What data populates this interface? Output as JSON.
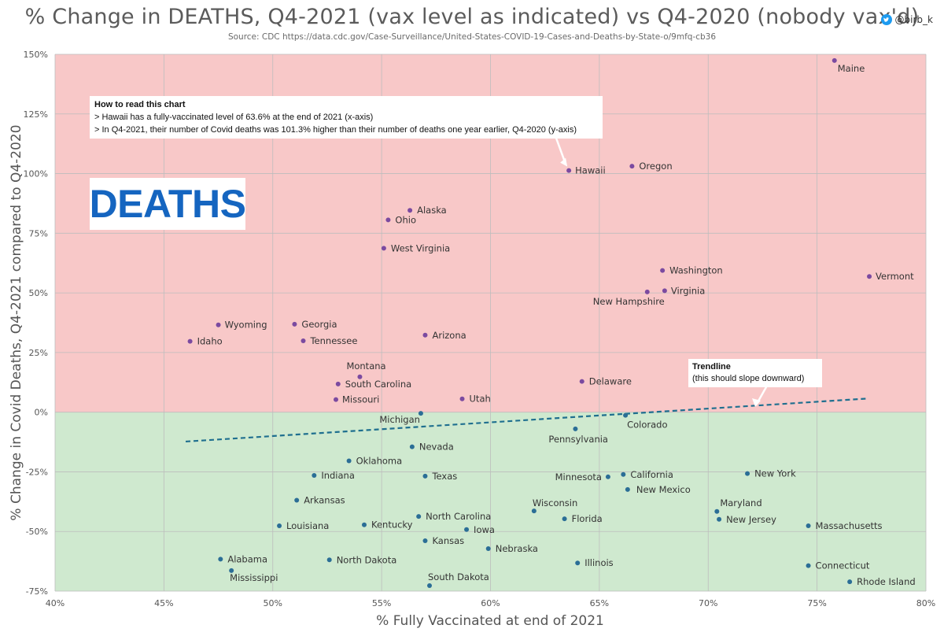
{
  "header": {
    "title": "% Change in DEATHS, Q4-2021 (vax level as indicated) vs Q4-2020 (nobody vax'd)",
    "source": "Source: CDC https://data.cdc.gov/Case-Surveillance/United-States-COVID-19-Cases-and-Deaths-by-State-o/9mfq-cb36",
    "handle": "@birb_k"
  },
  "colors": {
    "positive_region": "#f8c8c8",
    "negative_region": "#cfe9cf",
    "positive_point": "#7b4aa0",
    "negative_point": "#2b6e96",
    "trendline": "#1f6f8f",
    "deaths_text": "#1565c0"
  },
  "annotations": {
    "deaths_label": "DEATHS",
    "howto_title": "How to read this chart",
    "howto_line1": "> Hawaii has a fully-vaccinated level of 63.6% at the end of 2021 (x-axis)",
    "howto_line2": "> In Q4-2021, their number of Covid deaths was 101.3% higher than their number of deaths one year earlier, Q4-2020 (y-axis)",
    "trend_title": "Trendline",
    "trend_note": "(this should slope downward)"
  },
  "chart_data": {
    "type": "scatter",
    "title": "% Change in DEATHS, Q4-2021 (vax level as indicated) vs Q4-2020 (nobody vax'd)",
    "xlabel": "% Fully Vaccinated at end of 2021",
    "ylabel": "% Change in Covid Deaths, Q4-2021 compared to Q4-2020",
    "xlim": [
      40,
      80
    ],
    "ylim": [
      -75,
      150
    ],
    "xticks": [
      40,
      45,
      50,
      55,
      60,
      65,
      70,
      75,
      80
    ],
    "yticks": [
      -75,
      -50,
      -25,
      0,
      25,
      50,
      75,
      100,
      125,
      150
    ],
    "grid": true,
    "trendline": {
      "x": [
        46,
        77.3
      ],
      "y": [
        -12.3,
        5.7
      ]
    },
    "points": [
      {
        "name": "Maine",
        "x": 75.8,
        "y": 147.4
      },
      {
        "name": "Hawaii",
        "x": 63.6,
        "y": 101.3
      },
      {
        "name": "Oregon",
        "x": 66.5,
        "y": 103.1
      },
      {
        "name": "Alaska",
        "x": 56.3,
        "y": 84.6
      },
      {
        "name": "Ohio",
        "x": 55.3,
        "y": 80.6
      },
      {
        "name": "West Virginia",
        "x": 55.1,
        "y": 68.7
      },
      {
        "name": "Washington",
        "x": 67.9,
        "y": 59.4
      },
      {
        "name": "Vermont",
        "x": 77.4,
        "y": 56.9
      },
      {
        "name": "Virginia",
        "x": 68.0,
        "y": 50.9
      },
      {
        "name": "New Hampshire",
        "x": 67.2,
        "y": 50.4
      },
      {
        "name": "Wyoming",
        "x": 47.5,
        "y": 36.6
      },
      {
        "name": "Georgia",
        "x": 51.0,
        "y": 36.9
      },
      {
        "name": "Idaho",
        "x": 46.2,
        "y": 29.7
      },
      {
        "name": "Tennessee",
        "x": 51.4,
        "y": 29.9
      },
      {
        "name": "Arizona",
        "x": 57.0,
        "y": 32.3
      },
      {
        "name": "Montana",
        "x": 54.0,
        "y": 14.8
      },
      {
        "name": "South Carolina",
        "x": 53.0,
        "y": 11.8
      },
      {
        "name": "Delaware",
        "x": 64.2,
        "y": 12.9
      },
      {
        "name": "Missouri",
        "x": 52.9,
        "y": 5.3
      },
      {
        "name": "Utah",
        "x": 58.7,
        "y": 5.6
      },
      {
        "name": "Michigan",
        "x": 56.8,
        "y": -0.5
      },
      {
        "name": "Colorado",
        "x": 66.2,
        "y": -1.3
      },
      {
        "name": "Pennsylvania",
        "x": 63.9,
        "y": -7.0
      },
      {
        "name": "Nevada",
        "x": 56.4,
        "y": -14.5
      },
      {
        "name": "Oklahoma",
        "x": 53.5,
        "y": -20.4
      },
      {
        "name": "Indiana",
        "x": 51.9,
        "y": -26.5
      },
      {
        "name": "Texas",
        "x": 57.0,
        "y": -26.8
      },
      {
        "name": "Minnesota",
        "x": 65.4,
        "y": -27.1
      },
      {
        "name": "California",
        "x": 66.1,
        "y": -26.1
      },
      {
        "name": "New York",
        "x": 71.8,
        "y": -25.7
      },
      {
        "name": "New Mexico",
        "x": 66.3,
        "y": -32.4
      },
      {
        "name": "Arkansas",
        "x": 51.1,
        "y": -36.9
      },
      {
        "name": "Wisconsin",
        "x": 62.0,
        "y": -41.4
      },
      {
        "name": "Maryland",
        "x": 70.4,
        "y": -41.6
      },
      {
        "name": "North Carolina",
        "x": 56.7,
        "y": -43.7
      },
      {
        "name": "Florida",
        "x": 63.4,
        "y": -44.7
      },
      {
        "name": "New Jersey",
        "x": 70.5,
        "y": -44.9
      },
      {
        "name": "Louisiana",
        "x": 50.3,
        "y": -47.6
      },
      {
        "name": "Kentucky",
        "x": 54.2,
        "y": -47.2
      },
      {
        "name": "Massachusetts",
        "x": 74.6,
        "y": -47.6
      },
      {
        "name": "Iowa",
        "x": 58.9,
        "y": -49.2
      },
      {
        "name": "Kansas",
        "x": 57.0,
        "y": -53.9
      },
      {
        "name": "Nebraska",
        "x": 59.9,
        "y": -57.2
      },
      {
        "name": "Alabama",
        "x": 47.6,
        "y": -61.6
      },
      {
        "name": "North Dakota",
        "x": 52.6,
        "y": -61.9
      },
      {
        "name": "Illinois",
        "x": 64.0,
        "y": -63.2
      },
      {
        "name": "Connecticut",
        "x": 74.6,
        "y": -64.3
      },
      {
        "name": "Mississippi",
        "x": 48.1,
        "y": -66.4
      },
      {
        "name": "Rhode Island",
        "x": 76.5,
        "y": -71.1
      },
      {
        "name": "South Dakota",
        "x": 57.2,
        "y": -72.7
      }
    ]
  }
}
